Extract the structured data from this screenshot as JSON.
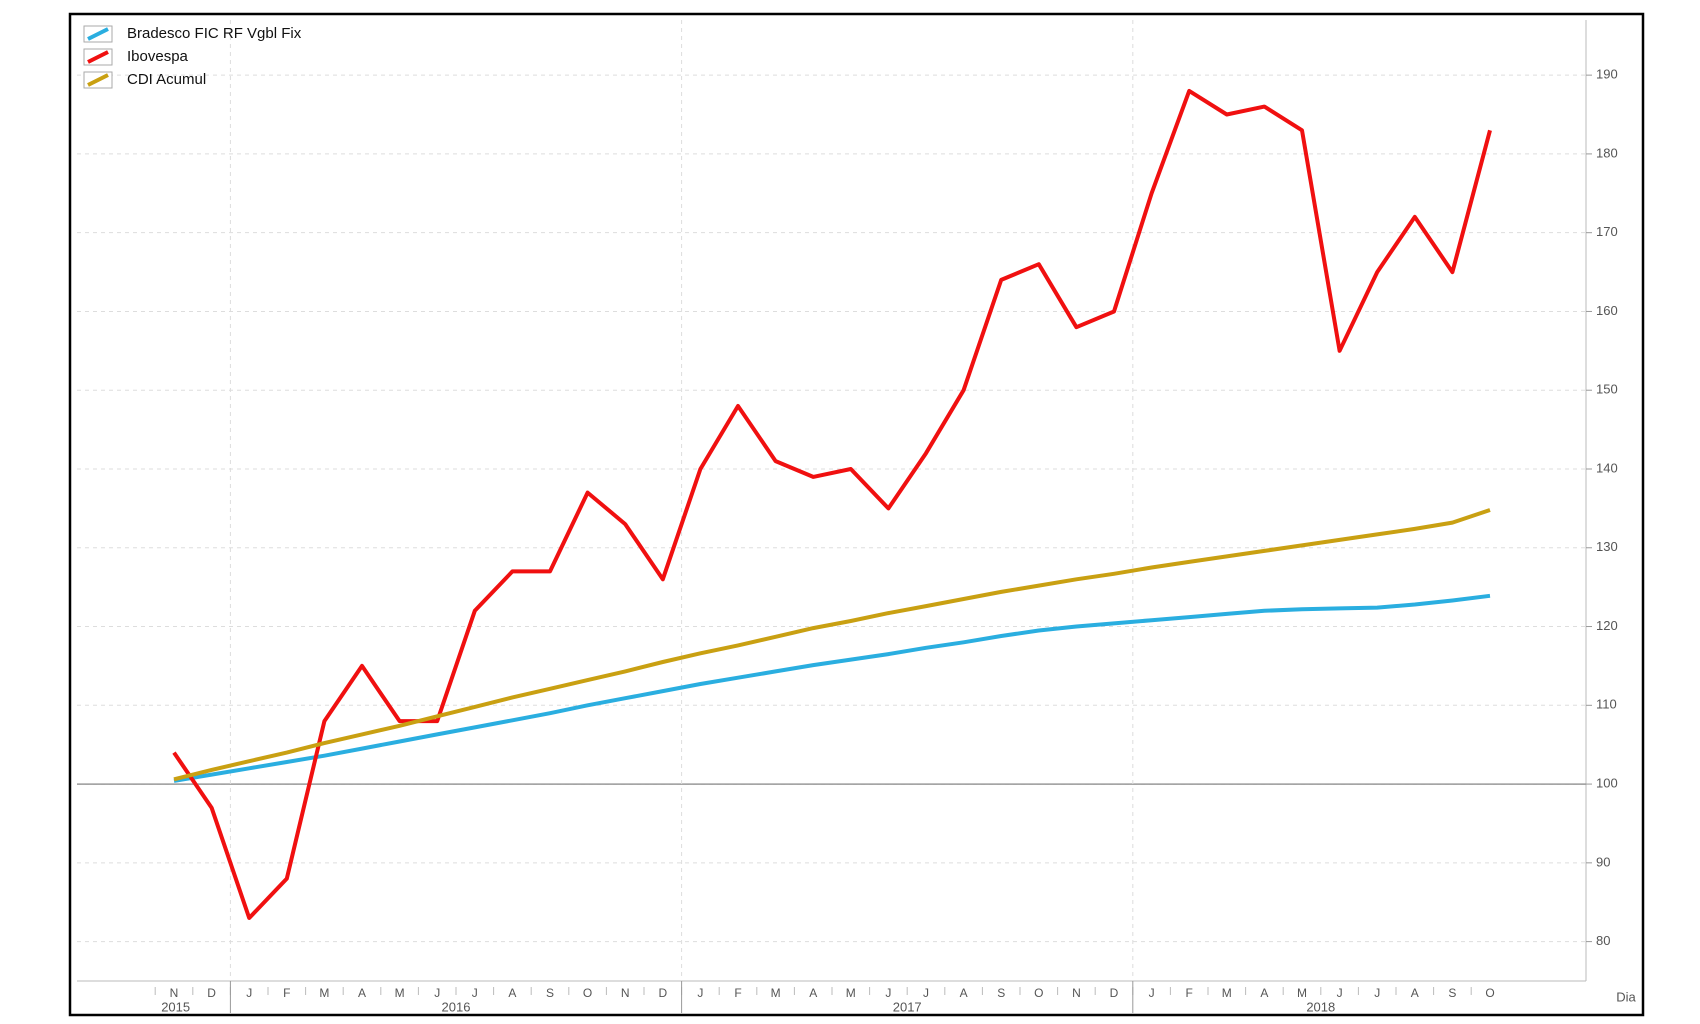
{
  "chart_data": {
    "type": "line",
    "x_label": "Dia",
    "year_groups": [
      {
        "label": "2015",
        "months": [
          "N",
          "D"
        ]
      },
      {
        "label": "2016",
        "months": [
          "J",
          "F",
          "M",
          "A",
          "M",
          "J",
          "J",
          "A",
          "S",
          "O",
          "N",
          "D"
        ]
      },
      {
        "label": "2017",
        "months": [
          "J",
          "F",
          "M",
          "A",
          "M",
          "J",
          "J",
          "A",
          "S",
          "O",
          "N",
          "D"
        ]
      },
      {
        "label": "2018",
        "months": [
          "J",
          "F",
          "M",
          "A",
          "M",
          "J",
          "J",
          "A",
          "S",
          "O"
        ]
      }
    ],
    "series": [
      {
        "name": "Bradesco FIC RF Vgbl Fix",
        "color": "#2aaee0",
        "values": [
          100.4,
          101.2,
          102,
          102.8,
          103.6,
          104.5,
          105.4,
          106.3,
          107.2,
          108.1,
          109,
          110,
          110.9,
          111.8,
          112.7,
          113.5,
          114.3,
          115.1,
          115.8,
          116.5,
          117.3,
          118,
          118.8,
          119.5,
          120,
          120.4,
          120.8,
          121.2,
          121.6,
          122,
          122.2,
          122.3,
          122.4,
          122.8,
          123.3,
          123.9
        ]
      },
      {
        "name": "Ibovespa",
        "color": "#f01010",
        "values": [
          104,
          97,
          83,
          88,
          108,
          115,
          108,
          108,
          122,
          127,
          127,
          137,
          133,
          126,
          140,
          148,
          141,
          139,
          140,
          135,
          142,
          150,
          164,
          166,
          158,
          160,
          175,
          188,
          185,
          186,
          183,
          155,
          165,
          172,
          165,
          183
        ]
      },
      {
        "name": "CDI Acumul",
        "color": "#c9a012",
        "values": [
          100.6,
          101.8,
          102.9,
          104,
          105.2,
          106.3,
          107.4,
          108.6,
          109.8,
          111,
          112.1,
          113.2,
          114.3,
          115.5,
          116.6,
          117.6,
          118.7,
          119.8,
          120.7,
          121.7,
          122.6,
          123.5,
          124.4,
          125.2,
          126,
          126.7,
          127.5,
          128.2,
          128.9,
          129.6,
          130.3,
          131,
          131.7,
          132.4,
          133.2,
          134.8
        ]
      }
    ],
    "reference_line": 100,
    "ylim": [
      75,
      197
    ],
    "yticks": [
      80,
      90,
      100,
      110,
      120,
      130,
      140,
      150,
      160,
      170,
      180,
      190
    ],
    "grid": true,
    "legend": "top-left"
  }
}
